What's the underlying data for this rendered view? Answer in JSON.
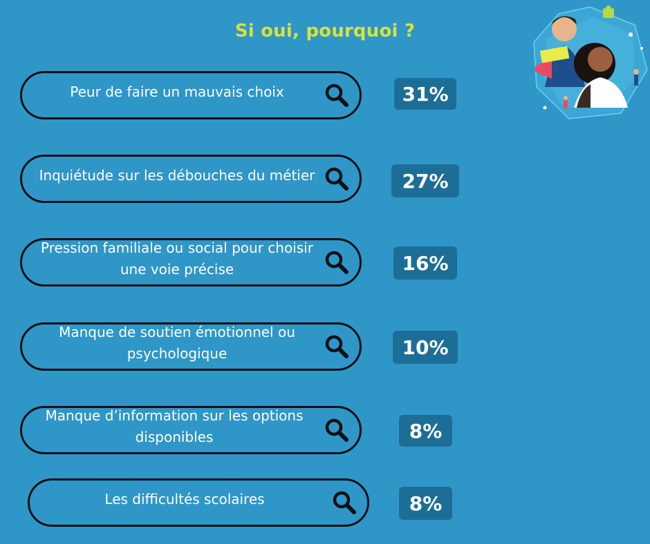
{
  "title": "Si oui, pourquoi ?",
  "items": [
    {
      "label": "Peur de faire un mauvais choix",
      "percent": "31%"
    },
    {
      "label": "Inquiétude sur les débouches du métier",
      "percent": "27%"
    },
    {
      "label": "Pression familiale ou social pour choisir une voie précise",
      "percent": "16%"
    },
    {
      "label": "Manque de soutien émotionnel ou psychologique",
      "percent": "10%"
    },
    {
      "label": "Manque d’information sur les options disponibles",
      "percent": "8%"
    },
    {
      "label": "Les difficultés scolaires",
      "percent": "8%"
    }
  ],
  "icons": {
    "search": "search-icon",
    "illustration": "students-illustration"
  },
  "colors": {
    "background": "#2f96c8",
    "title": "#d8e23a",
    "badge": "#1d6e96",
    "outline": "#0c1014"
  }
}
